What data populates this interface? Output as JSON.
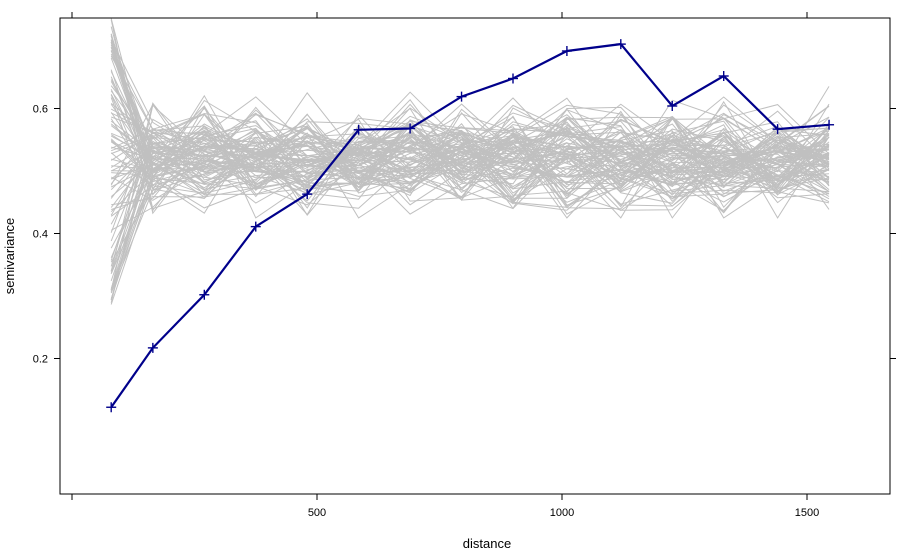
{
  "chart_data": {
    "type": "line",
    "title": "",
    "xlabel": "distance",
    "ylabel": "semivariance",
    "xlim": [
      -75,
      1650
    ],
    "ylim": [
      0.0,
      0.75
    ],
    "x_ticks": [
      500,
      1000,
      1500
    ],
    "y_ticks": [
      0.2,
      0.4,
      0.6
    ],
    "x_tick_labels": [
      "500",
      "1000",
      "1500"
    ],
    "y_tick_labels": [
      "0.2",
      "0.4",
      "0.6"
    ],
    "grid": false,
    "legend": "none",
    "x": [
      80,
      165,
      270,
      375,
      480,
      585,
      690,
      795,
      900,
      1010,
      1120,
      1225,
      1330,
      1440,
      1545
    ],
    "series": [
      {
        "role": "sample",
        "color": "#00008b",
        "marker": "+",
        "values": [
          0.122,
          0.217,
          0.302,
          0.411,
          0.463,
          0.566,
          0.568,
          0.619,
          0.648,
          0.692,
          0.703,
          0.604,
          0.652,
          0.567,
          0.574
        ]
      }
    ],
    "envelope": {
      "role": "permutation-envelope",
      "color": "#c0c0c0",
      "count": 100,
      "first_lag_range": [
        0.285,
        0.745
      ],
      "center": 0.52,
      "spread": 0.04
    }
  }
}
